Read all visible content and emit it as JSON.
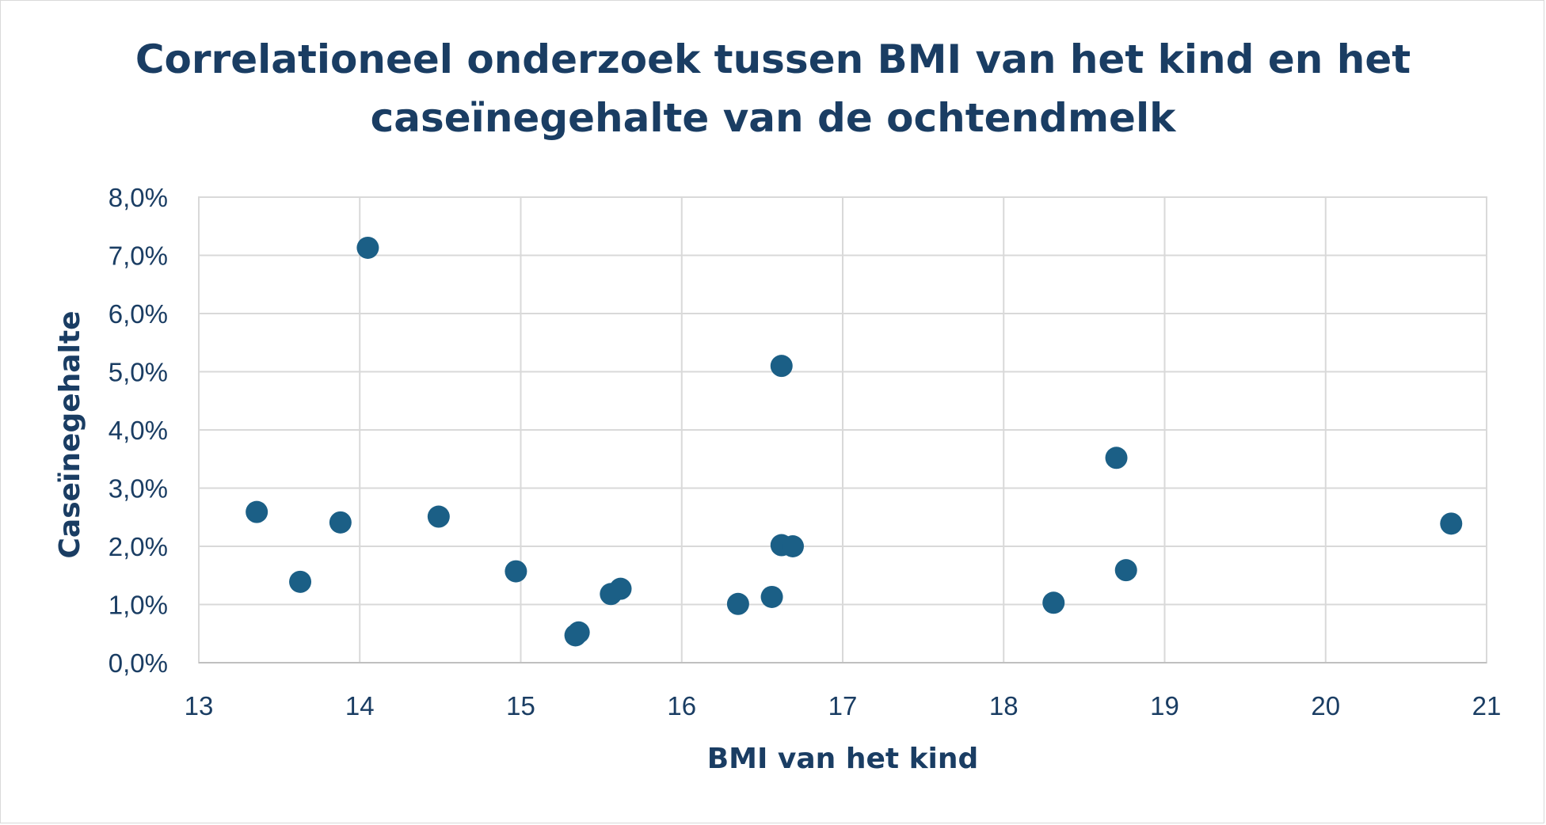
{
  "chart_data": {
    "type": "scatter",
    "title_line1": "Correlationeel onderzoek tussen BMI van het kind en het",
    "title_line2": "caseïnegehalte van de ochtendmelk",
    "xlabel": "BMI van het kind",
    "ylabel": "Caseïnegehalte",
    "xlim": [
      13,
      21
    ],
    "ylim": [
      0,
      0.08
    ],
    "x_ticks": [
      "13",
      "14",
      "15",
      "16",
      "17",
      "18",
      "19",
      "20",
      "21"
    ],
    "y_ticks": [
      "0,0%",
      "1,0%",
      "2,0%",
      "3,0%",
      "4,0%",
      "5,0%",
      "6,0%",
      "7,0%",
      "8,0%"
    ],
    "grid": true,
    "marker_color": "#1b5f86",
    "points": [
      {
        "x": 13.36,
        "y": 0.0259
      },
      {
        "x": 13.63,
        "y": 0.0139
      },
      {
        "x": 13.88,
        "y": 0.0241
      },
      {
        "x": 14.05,
        "y": 0.0713
      },
      {
        "x": 14.49,
        "y": 0.0251
      },
      {
        "x": 14.97,
        "y": 0.0157
      },
      {
        "x": 15.34,
        "y": 0.0047
      },
      {
        "x": 15.36,
        "y": 0.0052
      },
      {
        "x": 15.56,
        "y": 0.0118
      },
      {
        "x": 15.62,
        "y": 0.0127
      },
      {
        "x": 16.35,
        "y": 0.0101
      },
      {
        "x": 16.56,
        "y": 0.0113
      },
      {
        "x": 16.62,
        "y": 0.051
      },
      {
        "x": 16.62,
        "y": 0.0202
      },
      {
        "x": 16.69,
        "y": 0.02
      },
      {
        "x": 18.31,
        "y": 0.0103
      },
      {
        "x": 18.7,
        "y": 0.0352
      },
      {
        "x": 18.76,
        "y": 0.0159
      },
      {
        "x": 20.78,
        "y": 0.0239
      }
    ]
  }
}
